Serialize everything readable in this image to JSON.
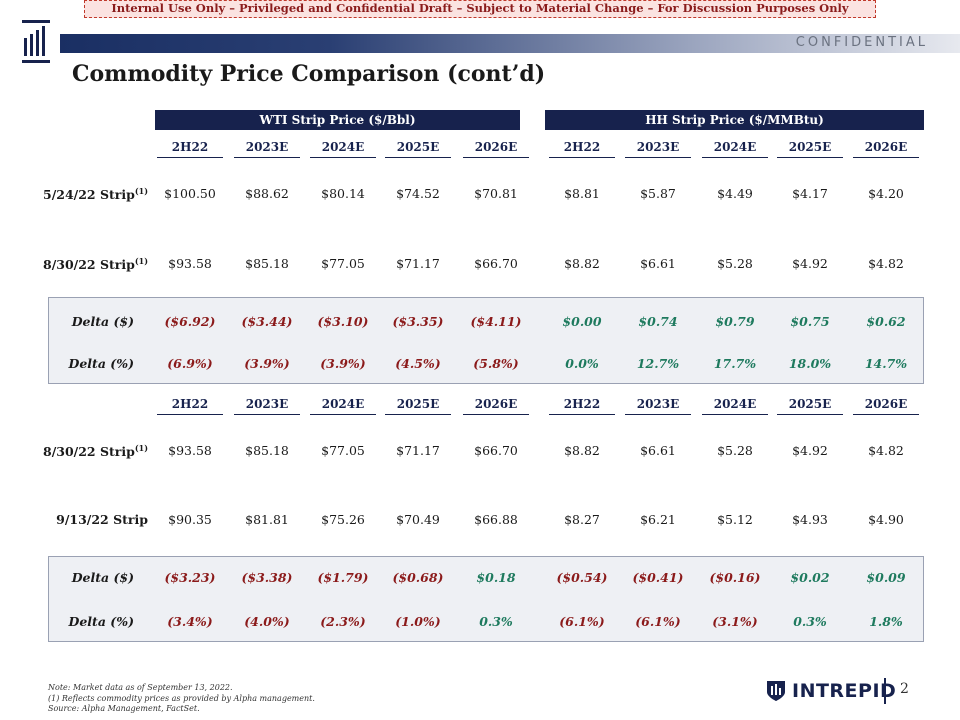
{
  "banner": "Internal Use Only – Privileged and Confidential Draft – Subject to Material Change – For Discussion Purposes Only",
  "header": {
    "confidential": "CONFIDENTIAL",
    "title": "Commodity Price Comparison (cont’d)"
  },
  "groups": {
    "wti": "WTI Strip Price ($/Bbl)",
    "hh": "HH Strip Price ($/MMBtu)"
  },
  "years": [
    "2H22",
    "2023E",
    "2024E",
    "2025E",
    "2026E",
    "2H22",
    "2023E",
    "2024E",
    "2025E",
    "2026E"
  ],
  "footnote_marker": "(1)",
  "section1": {
    "rows": [
      {
        "label": "5/24/22 Strip",
        "values": [
          "$100.50",
          "$88.62",
          "$80.14",
          "$74.52",
          "$70.81",
          "$8.81",
          "$5.87",
          "$4.49",
          "$4.17",
          "$4.20"
        ]
      },
      {
        "label": "8/30/22 Strip",
        "values": [
          "$93.58",
          "$85.18",
          "$77.05",
          "$71.17",
          "$66.70",
          "$8.82",
          "$6.61",
          "$5.28",
          "$4.92",
          "$4.82"
        ]
      }
    ],
    "delta_dollar": {
      "label": "Delta ($)",
      "values": [
        "($6.92)",
        "($3.44)",
        "($3.10)",
        "($3.35)",
        "($4.11)",
        "$0.00",
        "$0.74",
        "$0.79",
        "$0.75",
        "$0.62"
      ]
    },
    "delta_pct": {
      "label": "Delta (%)",
      "values": [
        "(6.9%)",
        "(3.9%)",
        "(3.9%)",
        "(4.5%)",
        "(5.8%)",
        "0.0%",
        "12.7%",
        "17.7%",
        "18.0%",
        "14.7%"
      ]
    }
  },
  "section2": {
    "rows": [
      {
        "label": "8/30/22 Strip",
        "values": [
          "$93.58",
          "$85.18",
          "$77.05",
          "$71.17",
          "$66.70",
          "$8.82",
          "$6.61",
          "$5.28",
          "$4.92",
          "$4.82"
        ]
      },
      {
        "label": "9/13/22 Strip",
        "values": [
          "$90.35",
          "$81.81",
          "$75.26",
          "$70.49",
          "$66.88",
          "$8.27",
          "$6.21",
          "$5.12",
          "$4.93",
          "$4.90"
        ]
      }
    ],
    "delta_dollar": {
      "label": "Delta ($)",
      "values": [
        "($3.23)",
        "($3.38)",
        "($1.79)",
        "($0.68)",
        "$0.18",
        "($0.54)",
        "($0.41)",
        "($0.16)",
        "$0.02",
        "$0.09"
      ]
    },
    "delta_pct": {
      "label": "Delta (%)",
      "values": [
        "(3.4%)",
        "(4.0%)",
        "(2.3%)",
        "(1.0%)",
        "0.3%",
        "(6.1%)",
        "(6.1%)",
        "(3.1%)",
        "0.3%",
        "1.8%"
      ]
    }
  },
  "footer": {
    "note": "Note: Market data as of September 13, 2022.",
    "fn1": "(1)      Reflects commodity prices as provided by Alpha management.",
    "source": "Source: Alpha Management, FactSet."
  },
  "brand": {
    "name": "INTREPID"
  },
  "page_number": "2"
}
